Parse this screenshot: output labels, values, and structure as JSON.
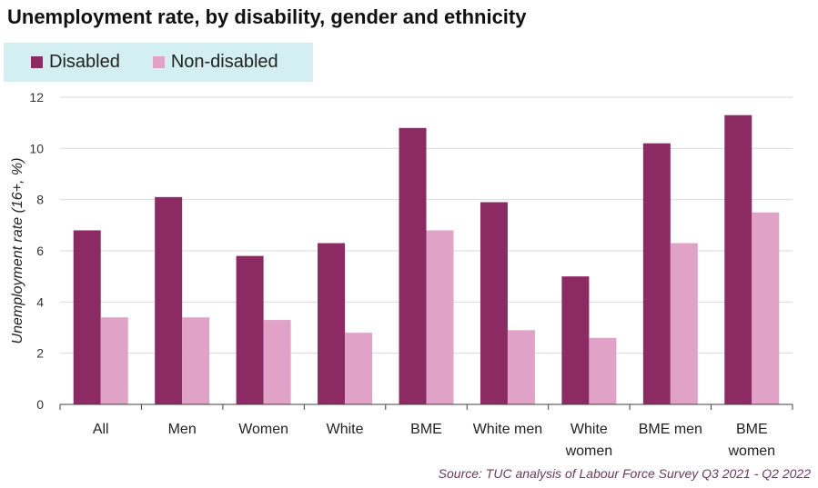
{
  "chart_data": {
    "type": "bar",
    "title": "Unemployment rate, by disability, gender and ethnicity",
    "ylabel": "Unemployment rate (16+, %)",
    "xlabel": "",
    "source": "Source: TUC analysis of Labour Force Survey Q3 2021 - Q2 2022",
    "ylim": [
      0,
      12
    ],
    "yticks": [
      0,
      2,
      4,
      6,
      8,
      10,
      12
    ],
    "grid": true,
    "legend_position": "top-left",
    "categories": [
      [
        "All"
      ],
      [
        "Men"
      ],
      [
        "Women"
      ],
      [
        "White"
      ],
      [
        "BME"
      ],
      [
        "White men"
      ],
      [
        "White",
        "women"
      ],
      [
        "BME men"
      ],
      [
        "BME",
        "women"
      ]
    ],
    "series": [
      {
        "name": "Disabled",
        "color": "#8b2a63",
        "values": [
          6.8,
          8.1,
          5.8,
          6.3,
          10.8,
          7.9,
          5.0,
          10.2,
          11.3
        ]
      },
      {
        "name": "Non-disabled",
        "color": "#e0a2c6",
        "values": [
          3.4,
          3.4,
          3.3,
          2.8,
          6.8,
          2.9,
          2.6,
          6.3,
          7.5
        ]
      }
    ]
  }
}
